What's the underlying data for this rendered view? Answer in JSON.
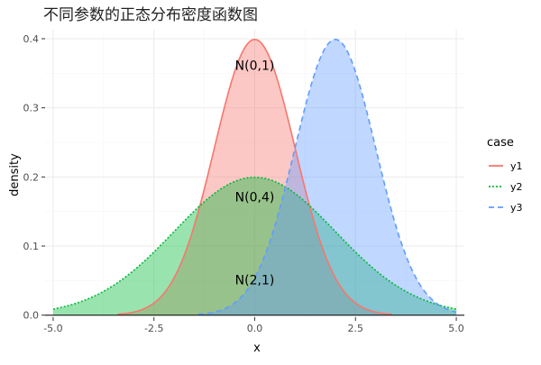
{
  "chart_data": {
    "type": "area",
    "title": "不同参数的正态分布密度函数图",
    "xlabel": "x",
    "ylabel": "density",
    "xlim": [
      -5.2,
      5.2
    ],
    "ylim": [
      -0.003,
      0.413
    ],
    "x_ticks": [
      -5.0,
      -2.5,
      0.0,
      2.5,
      5.0
    ],
    "x_tick_labels": [
      "-5.0",
      "-2.5",
      "0.0",
      "2.5",
      "5.0"
    ],
    "y_ticks": [
      0.0,
      0.1,
      0.2,
      0.3,
      0.4
    ],
    "y_tick_labels": [
      "0.0",
      "0.1",
      "0.2",
      "0.3",
      "0.4"
    ],
    "grid": true,
    "legend": {
      "title": "case",
      "position": "right",
      "entries": [
        {
          "label": "y1",
          "color": "#F8766D",
          "linestyle": "solid"
        },
        {
          "label": "y2",
          "color": "#00BA38",
          "linestyle": "dotted"
        },
        {
          "label": "y3",
          "color": "#619CFF",
          "linestyle": "dashed"
        }
      ]
    },
    "series": [
      {
        "name": "y1",
        "mean": 0,
        "sd": 1,
        "x_range": [
          -3.4,
          3.4
        ],
        "peak": 0.399,
        "color": "#F8766D",
        "linestyle": "solid"
      },
      {
        "name": "y2",
        "mean": 0,
        "sd": 2,
        "x_range": [
          -5.0,
          5.0
        ],
        "peak": 0.199,
        "color": "#00BA38",
        "linestyle": "dotted"
      },
      {
        "name": "y3",
        "mean": 2,
        "sd": 1,
        "x_range": [
          -1.4,
          5.0
        ],
        "peak": 0.399,
        "color": "#619CFF",
        "linestyle": "dashed"
      }
    ],
    "annotations": [
      {
        "text": "N(0,1)",
        "x": 0,
        "y": 0.36
      },
      {
        "text": "N(0,4)",
        "x": 0,
        "y": 0.17
      },
      {
        "text": "N(2,1)",
        "x": 0,
        "y": 0.05
      }
    ],
    "hline_y": 0
  }
}
